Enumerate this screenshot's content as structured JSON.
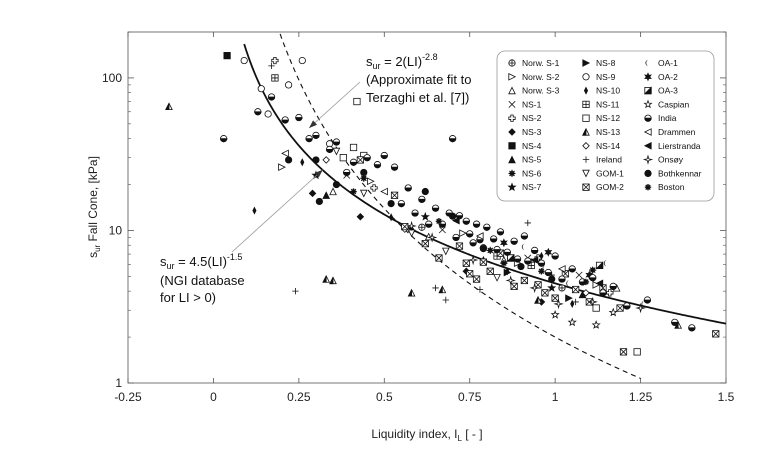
{
  "chart_data": {
    "type": "scatter",
    "title": "",
    "xlabel": "Liquidity index, I",
    "xlabel_sub": "L",
    "xlabel_unit": " [ - ]",
    "ylabel": "s",
    "ylabel_sub": "ur",
    "ylabel_rest": " Fall Cone, [kPa]",
    "xlim": [
      -0.25,
      1.5
    ],
    "ylim": [
      1,
      200
    ],
    "yscale": "log",
    "x_ticks": [
      -0.25,
      0,
      0.25,
      0.5,
      0.75,
      1,
      1.25,
      1.5
    ],
    "x_tick_labels": [
      "-0.25",
      "0",
      "0.25",
      "0.5",
      "0.75",
      "1",
      "1.25",
      "1.5"
    ],
    "y_ticks": [
      1,
      10,
      100
    ],
    "y_tick_labels": [
      "1",
      "10",
      "100"
    ],
    "fits": [
      {
        "name": "NGI database",
        "equation": "4.5*LI^-1.5",
        "coef": 4.5,
        "exp": -1.5,
        "style": "solid",
        "x_range": [
          0.09,
          1.5
        ]
      },
      {
        "name": "Terzaghi fit",
        "equation": "2*LI^-2.8",
        "coef": 2,
        "exp": -2.8,
        "style": "dashed",
        "x_range": [
          0.17,
          1.25
        ]
      }
    ],
    "annotations": [
      {
        "id": "terzaghi",
        "eq_lead": "s",
        "eq_sub": "ur",
        "eq_mid": " = 2(LI)",
        "eq_sup": "-2.8",
        "line2": "(Approximate fit to",
        "line3": "Terzaghi et al. [7])",
        "arrow_to": [
          0.28,
          47
        ]
      },
      {
        "id": "ngi",
        "eq_lead": "s",
        "eq_sub": "ur",
        "eq_mid": " = 4.5(LI)",
        "eq_sup": "-1.5",
        "line2": "(NGI database",
        "line3": "for LI > 0)",
        "arrow_to": [
          0.32,
          25
        ]
      }
    ],
    "legend": {
      "position": "top-right",
      "columns": [
        [
          "Norw. S-1",
          "Norw. S-2",
          "Norw. S-3",
          "NS-1",
          "NS-2",
          "NS-3",
          "NS-4",
          "NS-5",
          "NS-6",
          "NS-7"
        ],
        [
          "NS-8",
          "NS-9",
          "NS-10",
          "NS-11",
          "NS-12",
          "NS-13",
          "NS-14",
          "Ireland",
          "GOM-1",
          "GOM-2"
        ],
        [
          "OA-1",
          "OA-2",
          "OA-3",
          "Caspian",
          "India",
          "Drammen",
          "Lierstranda",
          "Onsøy",
          "Bothkennar",
          "Boston"
        ]
      ],
      "symbols": [
        [
          "circle-plus",
          "tri-right",
          "tri-up",
          "x",
          "plus-open",
          "diamond",
          "square",
          "tri-up-fill",
          "star-burst",
          "star"
        ],
        [
          "tri-right-fill",
          "circle-open",
          "diamond-thin",
          "square-grid",
          "square-open",
          "tri-half",
          "diamond-open",
          "plus",
          "tri-down",
          "square-x"
        ],
        [
          "crescent",
          "star6",
          "square-half",
          "star-open",
          "circle-half",
          "tri-left",
          "tri-left-fill",
          "star4",
          "circle",
          "asterisk"
        ]
      ]
    },
    "series": [
      {
        "name": "Norw. S-1",
        "symbol": "circle-plus",
        "points": [
          [
            0.61,
            10.5
          ],
          [
            0.93,
            6.2
          ],
          [
            1.02,
            4.2
          ]
        ]
      },
      {
        "name": "Norw. S-2",
        "symbol": "tri-right",
        "points": [
          [
            0.2,
            26
          ],
          [
            0.46,
            21
          ],
          [
            0.73,
            9.6
          ],
          [
            0.89,
            6.1
          ],
          [
            1.12,
            4.4
          ]
        ]
      },
      {
        "name": "Norw. S-3",
        "symbol": "tri-up",
        "points": [
          [
            0.35,
            18
          ],
          [
            0.63,
            9.1
          ],
          [
            0.85,
            6.4
          ],
          [
            1.18,
            4.2
          ]
        ]
      },
      {
        "name": "NS-1",
        "symbol": "x",
        "points": [
          [
            0.39,
            23
          ],
          [
            0.67,
            10.1
          ],
          [
            0.92,
            6.6
          ],
          [
            1.07,
            5.1
          ]
        ]
      },
      {
        "name": "NS-2",
        "symbol": "plus-open",
        "points": [
          [
            0.18,
            130
          ],
          [
            0.47,
            19
          ],
          [
            0.95,
            6.6
          ],
          [
            1.16,
            3.9
          ]
        ]
      },
      {
        "name": "NS-3",
        "symbol": "diamond",
        "points": [
          [
            0.29,
            17.5
          ],
          [
            0.43,
            12.3
          ],
          [
            0.74,
            5.4
          ],
          [
            0.96,
            3.4
          ]
        ]
      },
      {
        "name": "NS-4",
        "symbol": "square",
        "points": [
          [
            0.04,
            140
          ]
        ]
      },
      {
        "name": "NS-5",
        "symbol": "tri-up-fill",
        "points": [
          [
            0.33,
            17
          ],
          [
            0.58,
            10.3
          ],
          [
            0.79,
            6.4
          ],
          [
            1.08,
            3.8
          ]
        ]
      },
      {
        "name": "NS-6",
        "symbol": "star-burst",
        "points": [
          [
            0.44,
            22
          ],
          [
            0.81,
            7.4
          ],
          [
            1.11,
            5.5
          ]
        ]
      },
      {
        "name": "NS-7",
        "symbol": "star",
        "points": [
          [
            0.3,
            23
          ],
          [
            0.62,
            12.3
          ],
          [
            0.99,
            4.2
          ]
        ]
      },
      {
        "name": "NS-8",
        "symbol": "tri-right-fill",
        "points": [
          [
            0.86,
            5.3
          ],
          [
            1.04,
            3.6
          ]
        ]
      },
      {
        "name": "NS-9",
        "symbol": "circle-open",
        "points": [
          [
            0.09,
            130
          ],
          [
            0.14,
            85
          ],
          [
            0.16,
            58
          ],
          [
            0.22,
            90
          ],
          [
            0.26,
            130
          ],
          [
            0.34,
            37
          ]
        ]
      },
      {
        "name": "NS-10",
        "symbol": "diamond-thin",
        "points": [
          [
            0.12,
            13.5
          ],
          [
            0.26,
            28
          ],
          [
            0.52,
            12.2
          ],
          [
            0.86,
            5.4
          ],
          [
            0.96,
            6.8
          ],
          [
            1.05,
            3.3
          ]
        ]
      },
      {
        "name": "NS-11",
        "symbol": "square-grid",
        "points": [
          [
            0.18,
            100
          ],
          [
            0.83,
            6.8
          ],
          [
            0.93,
            5.9
          ]
        ]
      },
      {
        "name": "NS-12",
        "symbol": "square-open",
        "points": [
          [
            0.42,
            70
          ],
          [
            0.38,
            30
          ],
          [
            0.41,
            35
          ],
          [
            0.44,
            31
          ],
          [
            1.12,
            3.1
          ],
          [
            1.24,
            1.6
          ]
        ]
      },
      {
        "name": "NS-13",
        "symbol": "tri-half",
        "points": [
          [
            -0.13,
            65
          ],
          [
            0.33,
            4.8
          ],
          [
            0.35,
            4.7
          ],
          [
            0.58,
            3.9
          ],
          [
            0.67,
            4.1
          ],
          [
            0.95,
            3.5
          ],
          [
            1.36,
            2.4
          ]
        ]
      },
      {
        "name": "NS-14",
        "symbol": "diamond-open",
        "points": [
          [
            0.33,
            29
          ],
          [
            0.56,
            10.2
          ],
          [
            0.81,
            5.4
          ],
          [
            1.09,
            3.9
          ]
        ]
      },
      {
        "name": "Ireland",
        "symbol": "plus",
        "points": [
          [
            0.17,
            120
          ],
          [
            0.24,
            4
          ],
          [
            0.65,
            4.2
          ],
          [
            0.68,
            3.5
          ],
          [
            0.78,
            4.1
          ],
          [
            0.92,
            11.2
          ],
          [
            0.99,
            5.1
          ],
          [
            1.06,
            3.4
          ]
        ]
      },
      {
        "name": "GOM-1",
        "symbol": "tri-down",
        "points": [
          [
            0.36,
            33
          ],
          [
            0.44,
            17.5
          ],
          [
            0.58,
            9.6
          ],
          [
            0.68,
            7.3
          ],
          [
            0.83,
            4.9
          ]
        ]
      },
      {
        "name": "GOM-2",
        "symbol": "square-x",
        "points": [
          [
            0.43,
            29
          ],
          [
            0.53,
            17
          ],
          [
            0.56,
            10.6
          ],
          [
            0.62,
            8.2
          ],
          [
            0.66,
            6.6
          ],
          [
            0.72,
            7.9
          ],
          [
            0.74,
            6.1
          ],
          [
            0.75,
            5.2
          ],
          [
            0.77,
            4.8
          ],
          [
            0.79,
            6.2
          ],
          [
            0.81,
            5.4
          ],
          [
            0.84,
            7.1
          ],
          [
            0.87,
            6.6
          ],
          [
            0.88,
            4.3
          ],
          [
            0.91,
            4.7
          ],
          [
            0.95,
            4.4
          ],
          [
            0.97,
            3.9
          ],
          [
            1.0,
            3.6
          ],
          [
            1.03,
            5.2
          ],
          [
            1.06,
            4.1
          ],
          [
            1.1,
            3.4
          ],
          [
            1.14,
            4.2
          ],
          [
            1.19,
            3.1
          ],
          [
            1.2,
            1.6
          ],
          [
            1.47,
            2.1
          ]
        ]
      },
      {
        "name": "OA-1",
        "symbol": "crescent",
        "points": [
          [
            0.91,
            7.8
          ],
          [
            0.97,
            5.6
          ],
          [
            1.04,
            4.5
          ],
          [
            1.15,
            6.1
          ],
          [
            1.26,
            3.3
          ]
        ]
      },
      {
        "name": "OA-2",
        "symbol": "star6",
        "points": [
          [
            0.85,
            8.3
          ],
          [
            0.98,
            7.2
          ],
          [
            1.1,
            5.1
          ]
        ]
      },
      {
        "name": "OA-3",
        "symbol": "square-half",
        "points": [
          [
            0.87,
            6.6
          ],
          [
            1.13,
            5.9
          ]
        ]
      },
      {
        "name": "Caspian",
        "symbol": "star-open",
        "points": [
          [
            1.0,
            2.8
          ],
          [
            1.05,
            2.5
          ],
          [
            1.12,
            2.4
          ],
          [
            1.17,
            2.9
          ]
        ]
      },
      {
        "name": "India",
        "symbol": "circle-half",
        "points": [
          [
            0.03,
            40
          ],
          [
            0.13,
            60
          ],
          [
            0.17,
            75
          ],
          [
            0.21,
            53
          ],
          [
            0.25,
            55
          ],
          [
            0.28,
            40
          ],
          [
            0.3,
            42
          ],
          [
            0.34,
            34
          ],
          [
            0.36,
            38
          ],
          [
            0.39,
            24
          ],
          [
            0.41,
            28
          ],
          [
            0.45,
            30
          ],
          [
            0.48,
            27
          ],
          [
            0.5,
            31
          ],
          [
            0.53,
            26
          ],
          [
            0.55,
            15
          ],
          [
            0.57,
            19
          ],
          [
            0.59,
            13
          ],
          [
            0.61,
            16
          ],
          [
            0.63,
            11
          ],
          [
            0.65,
            14
          ],
          [
            0.67,
            11
          ],
          [
            0.69,
            13
          ],
          [
            0.7,
            40
          ],
          [
            0.71,
            9
          ],
          [
            0.72,
            12.5
          ],
          [
            0.74,
            11.5
          ],
          [
            0.75,
            9.5
          ],
          [
            0.76,
            8.3
          ],
          [
            0.77,
            11
          ],
          [
            0.78,
            8.7
          ],
          [
            0.79,
            7.7
          ],
          [
            0.8,
            10.5
          ],
          [
            0.82,
            8.8
          ],
          [
            0.83,
            7.5
          ],
          [
            0.84,
            9.8
          ],
          [
            0.86,
            7.2
          ],
          [
            0.88,
            8.5
          ],
          [
            0.89,
            6.5
          ],
          [
            0.91,
            9.2
          ],
          [
            0.92,
            6.3
          ],
          [
            0.94,
            7.4
          ],
          [
            0.96,
            6.1
          ],
          [
            0.98,
            5.3
          ],
          [
            1.0,
            6.8
          ],
          [
            1.02,
            4.8
          ],
          [
            1.05,
            5.6
          ],
          [
            1.08,
            4.6
          ],
          [
            1.11,
            4.9
          ],
          [
            1.14,
            3.9
          ],
          [
            1.17,
            4.3
          ],
          [
            1.21,
            3.2
          ],
          [
            1.27,
            3.5
          ],
          [
            1.35,
            2.5
          ],
          [
            1.4,
            2.3
          ]
        ]
      },
      {
        "name": "Drammen",
        "symbol": "tri-left",
        "points": [
          [
            0.21,
            32
          ],
          [
            0.5,
            18
          ],
          [
            0.78,
            9.2
          ],
          [
            1.02,
            5.6
          ]
        ]
      },
      {
        "name": "Lierstranda",
        "symbol": "tri-left-fill",
        "points": [
          [
            0.71,
            11.6
          ],
          [
            0.94,
            6.4
          ],
          [
            1.13,
            4.5
          ]
        ]
      },
      {
        "name": "Onsøy",
        "symbol": "star4",
        "points": [
          [
            0.58,
            10.7
          ],
          [
            0.64,
            9
          ],
          [
            0.76,
            6.4
          ],
          [
            0.87,
            4.7
          ],
          [
            0.94,
            4.2
          ],
          [
            1.01,
            3.3
          ],
          [
            1.11,
            3.4
          ],
          [
            1.25,
            3.1
          ]
        ]
      },
      {
        "name": "Bothkennar",
        "symbol": "circle",
        "points": [
          [
            0.22,
            29
          ],
          [
            0.3,
            29
          ],
          [
            0.31,
            15.5
          ],
          [
            0.36,
            20
          ],
          [
            0.44,
            24
          ],
          [
            0.52,
            15
          ],
          [
            0.62,
            18
          ],
          [
            0.7,
            12.4
          ],
          [
            0.79,
            7.6
          ],
          [
            0.9,
            5.8
          ],
          [
            0.99,
            4.8
          ]
        ]
      },
      {
        "name": "Boston",
        "symbol": "asterisk",
        "points": [
          [
            0.41,
            18
          ],
          [
            0.66,
            11.5
          ],
          [
            0.85,
            6.1
          ],
          [
            0.96,
            5.4
          ],
          [
            1.09,
            4.6
          ]
        ]
      }
    ]
  }
}
